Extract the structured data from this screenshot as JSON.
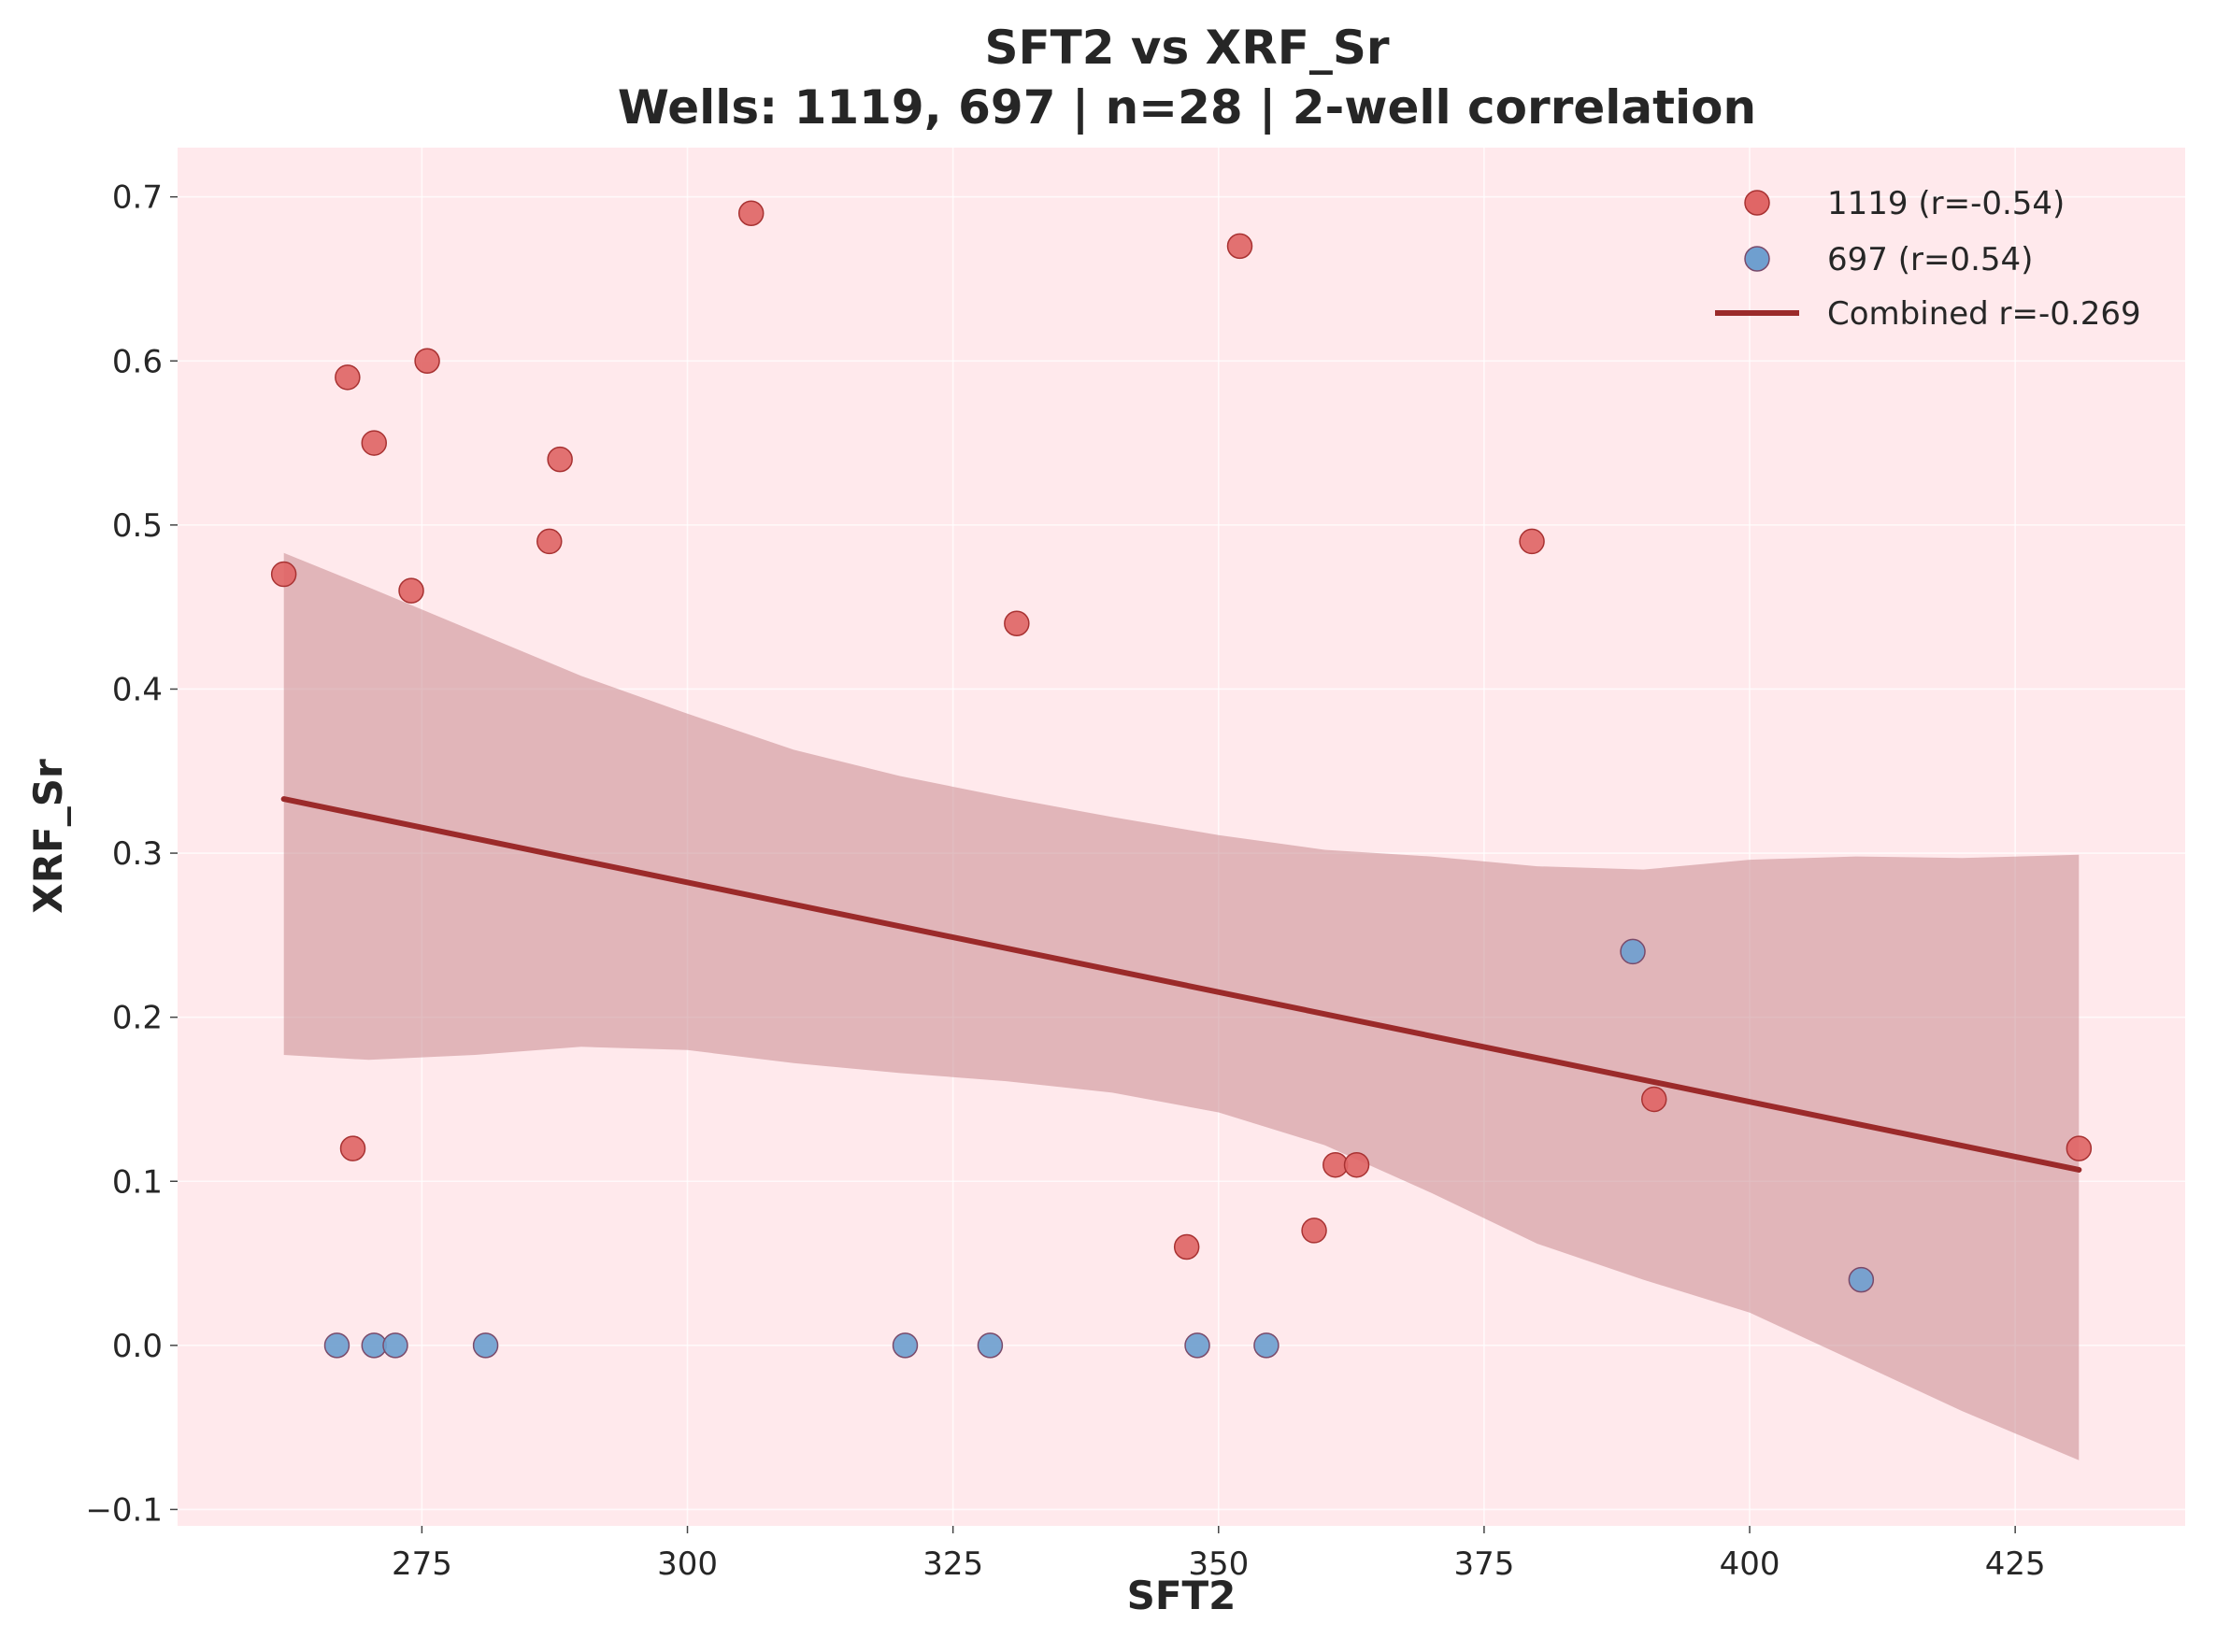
{
  "chart_data": {
    "type": "scatter",
    "title": "SFT2 vs XRF_Sr",
    "subtitle": "Wells: 1119, 697 | n=28 | 2-well correlation",
    "xlabel": "SFT2",
    "ylabel": "XRF_Sr",
    "xlim": [
      252,
      441
    ],
    "ylim": [
      -0.11,
      0.73
    ],
    "xticks": [
      275,
      300,
      325,
      350,
      375,
      400,
      425
    ],
    "yticks": [
      -0.1,
      0.0,
      0.1,
      0.2,
      0.3,
      0.4,
      0.5,
      0.6,
      0.7
    ],
    "ytick_labels": [
      "−0.1",
      "0.0",
      "0.1",
      "0.2",
      "0.3",
      "0.4",
      "0.5",
      "0.6",
      "0.7"
    ],
    "grid": true,
    "legend_position": "top-right",
    "background_color": "#ffe9ec",
    "series": [
      {
        "name": "1119 (r=-0.54)",
        "color": "#e06666",
        "edge_color": "#a83232",
        "points": [
          {
            "x": 262,
            "y": 0.47
          },
          {
            "x": 268,
            "y": 0.59
          },
          {
            "x": 268.5,
            "y": 0.12
          },
          {
            "x": 270.5,
            "y": 0.55
          },
          {
            "x": 274,
            "y": 0.46
          },
          {
            "x": 275.5,
            "y": 0.6
          },
          {
            "x": 287,
            "y": 0.49
          },
          {
            "x": 288,
            "y": 0.54
          },
          {
            "x": 306,
            "y": 0.69
          },
          {
            "x": 331,
            "y": 0.44
          },
          {
            "x": 347,
            "y": 0.06
          },
          {
            "x": 352,
            "y": 0.67
          },
          {
            "x": 359,
            "y": 0.07
          },
          {
            "x": 361,
            "y": 0.11
          },
          {
            "x": 363,
            "y": 0.11
          },
          {
            "x": 379.5,
            "y": 0.49
          },
          {
            "x": 391,
            "y": 0.15
          },
          {
            "x": 431,
            "y": 0.12
          }
        ]
      },
      {
        "name": "697 (r=0.54)",
        "color": "#6f9fcf",
        "edge_color": "#7a4a6a",
        "points": [
          {
            "x": 267,
            "y": 0.0
          },
          {
            "x": 270.5,
            "y": 0.0
          },
          {
            "x": 272.5,
            "y": 0.0
          },
          {
            "x": 281,
            "y": 0.0
          },
          {
            "x": 320.5,
            "y": 0.0
          },
          {
            "x": 328.5,
            "y": 0.0
          },
          {
            "x": 348,
            "y": 0.0
          },
          {
            "x": 354.5,
            "y": 0.0
          },
          {
            "x": 389,
            "y": 0.24
          },
          {
            "x": 410.5,
            "y": 0.04
          }
        ]
      }
    ],
    "regression": {
      "name": "Combined r=-0.269",
      "color": "#9b2a2a",
      "x": [
        262,
        431
      ],
      "y": [
        0.333,
        0.107
      ],
      "ci_color": "#c98a90",
      "ci_x": [
        262,
        270,
        280,
        290,
        300,
        310,
        320,
        330,
        340,
        350,
        360,
        370,
        380,
        390,
        400,
        410,
        420,
        431
      ],
      "ci_upper": [
        0.483,
        0.462,
        0.435,
        0.408,
        0.385,
        0.363,
        0.347,
        0.334,
        0.322,
        0.311,
        0.302,
        0.298,
        0.292,
        0.29,
        0.296,
        0.298,
        0.297,
        0.299
      ],
      "ci_lower": [
        0.177,
        0.174,
        0.177,
        0.182,
        0.18,
        0.172,
        0.166,
        0.161,
        0.154,
        0.142,
        0.122,
        0.093,
        0.062,
        0.04,
        0.02,
        -0.01,
        -0.04,
        -0.07
      ]
    }
  }
}
